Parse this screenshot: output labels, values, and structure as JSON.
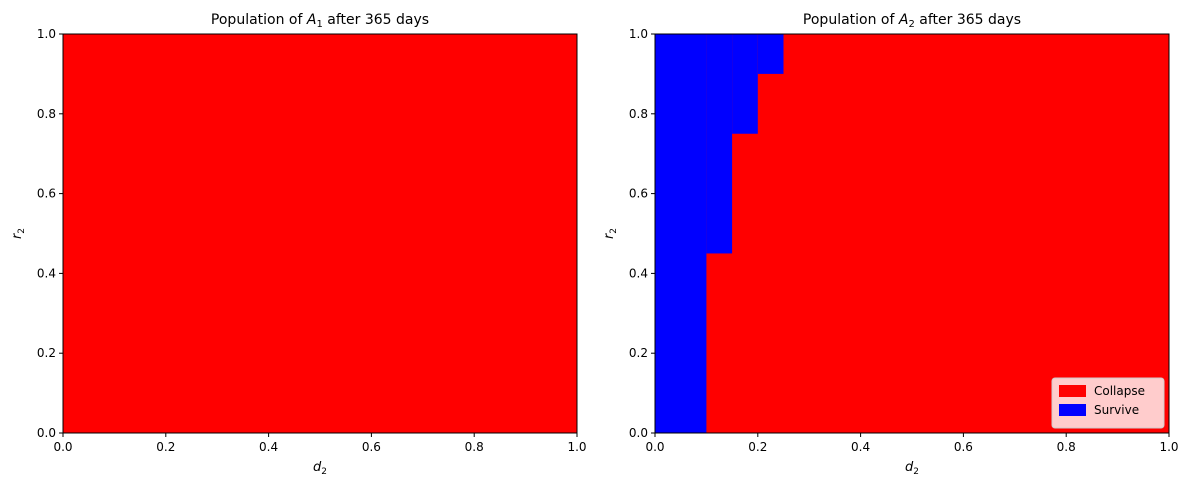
{
  "colors": {
    "collapse": "#ff0000",
    "survive": "#0000ff",
    "background": "#ffffff",
    "axis": "#000000"
  },
  "chart_data": [
    {
      "type": "heatmap",
      "title_prefix": "Population of ",
      "title_var": "A",
      "title_sub": "1",
      "title_suffix": " after 365 days",
      "xlabel_var": "d",
      "xlabel_sub": "2",
      "ylabel_var": "r",
      "ylabel_sub": "2",
      "xlim": [
        0,
        1
      ],
      "ylim": [
        0,
        1
      ],
      "xticks": [
        "0.0",
        "0.2",
        "0.4",
        "0.6",
        "0.8",
        "1.0"
      ],
      "yticks": [
        "0.0",
        "0.2",
        "0.4",
        "0.6",
        "0.8",
        "1.0"
      ],
      "regions": [
        {
          "state": "collapse",
          "x0": 0.0,
          "x1": 1.0,
          "y0": 0.0,
          "y1": 1.0
        }
      ],
      "legend": null
    },
    {
      "type": "heatmap",
      "title_prefix": "Population of ",
      "title_var": "A",
      "title_sub": "2",
      "title_suffix": " after 365 days",
      "xlabel_var": "d",
      "xlabel_sub": "2",
      "ylabel_var": "r",
      "ylabel_sub": "2",
      "xlim": [
        0,
        1
      ],
      "ylim": [
        0,
        1
      ],
      "xticks": [
        "0.0",
        "0.2",
        "0.4",
        "0.6",
        "0.8",
        "1.0"
      ],
      "yticks": [
        "0.0",
        "0.2",
        "0.4",
        "0.6",
        "0.8",
        "1.0"
      ],
      "regions": [
        {
          "state": "collapse",
          "x0": 0.0,
          "x1": 1.0,
          "y0": 0.0,
          "y1": 1.0
        },
        {
          "state": "survive",
          "x0": 0.0,
          "x1": 0.1,
          "y0": 0.0,
          "y1": 1.0
        },
        {
          "state": "survive",
          "x0": 0.1,
          "x1": 0.15,
          "y0": 0.45,
          "y1": 1.0
        },
        {
          "state": "survive",
          "x0": 0.15,
          "x1": 0.2,
          "y0": 0.75,
          "y1": 1.0
        },
        {
          "state": "survive",
          "x0": 0.2,
          "x1": 0.25,
          "y0": 0.9,
          "y1": 1.0
        }
      ],
      "legend": {
        "placement": "lower-right",
        "entries": [
          {
            "label": "Collapse",
            "state": "collapse"
          },
          {
            "label": "Survive",
            "state": "survive"
          }
        ]
      }
    }
  ]
}
